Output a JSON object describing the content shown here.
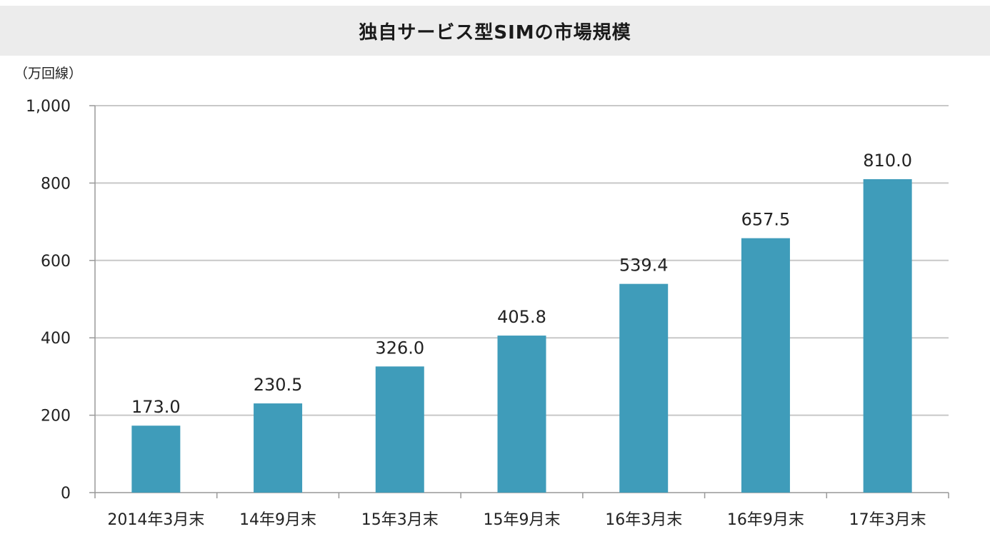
{
  "colors": {
    "bar": "#3f9cba",
    "gridline": "#c8c8c8",
    "axis": "#999999",
    "title_bg": "#ececec",
    "text": "#222222"
  },
  "chart_data": {
    "type": "bar",
    "title": "独自サービス型SIMの市場規模",
    "unit": "（万回線）",
    "categories": [
      "2014年3月末",
      "14年9月末",
      "15年3月末",
      "15年9月末",
      "16年3月末",
      "16年9月末",
      "17年3月末"
    ],
    "series": [
      {
        "values": [
          173.0,
          230.5,
          326.0,
          405.8,
          539.4,
          657.5,
          810.0
        ]
      }
    ],
    "data_labels": [
      "173.0",
      "230.5",
      "326.0",
      "405.8",
      "539.4",
      "657.5",
      "810.0"
    ],
    "ylim": [
      0,
      1000
    ],
    "yticks": [
      0,
      200,
      400,
      600,
      800,
      1000
    ],
    "ytick_labels": [
      "0",
      "200",
      "400",
      "600",
      "800",
      "1,000"
    ],
    "grid": true,
    "legend": "none"
  }
}
